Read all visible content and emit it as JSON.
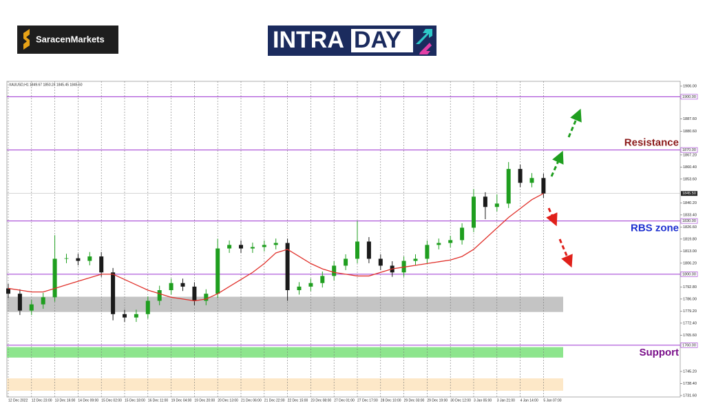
{
  "header": {
    "brand": "SaracenMarkets",
    "logo_left": "INTRA",
    "logo_right": "DAY"
  },
  "chart_data": {
    "type": "candlestick",
    "title": "XAUUSD,H1  1849.67 1850.24 1845.45 1845.50",
    "categories": [
      "12 Dec 2022",
      null,
      "12 Dec 23:00",
      null,
      "13 Dec 16:00",
      null,
      "14 Dec 09:00",
      null,
      "15 Dec 02:00",
      null,
      "15 Dec 18:00",
      null,
      "16 Dec 11:00",
      null,
      "19 Dec 04:00",
      null,
      "19 Dec 20:00",
      null,
      "20 Dec 13:00",
      null,
      "21 Dec 06:00",
      null,
      "21 Dec 22:00",
      null,
      "22 Dec 15:00",
      null,
      "23 Dec 08:00",
      null,
      "27 Dec 01:00",
      null,
      "27 Dec 17:00",
      null,
      "28 Dec 10:00",
      null,
      "29 Dec 03:00",
      null,
      "29 Dec 19:00",
      null,
      "30 Dec 12:00",
      null,
      "3 Jan 05:00",
      null,
      "3 Jan 21:00",
      null,
      "4 Jan 14:00",
      null,
      "5 Jan 07:00"
    ],
    "open": [
      1792,
      1789,
      1779.5,
      1783,
      1787,
      1808.7,
      1809,
      1807.5,
      1810,
      1801,
      1777.5,
      1775.6,
      1777.5,
      1785,
      1791,
      1795,
      1793,
      1785,
      1789,
      1814.5,
      1816.5,
      1814.5,
      1815.3,
      1816.5,
      1817.6,
      1791,
      1793,
      1795,
      1799,
      1804.8,
      1808.7,
      1818.4,
      1808.7,
      1804.8,
      1801,
      1807.5,
      1808.7,
      1816.5,
      1817.6,
      1819.2,
      1826.2,
      1843.7,
      1837.9,
      1839.8,
      1859.3,
      1851.5,
      1854.2
    ],
    "high": [
      1794.5,
      1791.5,
      1785.5,
      1789.5,
      1822,
      1811.5,
      1811.5,
      1812.5,
      1812.5,
      1803.5,
      1780,
      1780,
      1787.5,
      1793.5,
      1797.5,
      1797.5,
      1795.5,
      1791.5,
      1820,
      1819,
      1819,
      1817.8,
      1819,
      1820.1,
      1820.1,
      1795.5,
      1797.5,
      1801.5,
      1807.3,
      1811.2,
      1830,
      1820.9,
      1811.2,
      1807.3,
      1810,
      1811.2,
      1819,
      1820.1,
      1821.7,
      1828.7,
      1848,
      1846.2,
      1845,
      1863.2,
      1861.8,
      1857,
      1856.7
    ],
    "low": [
      1786.5,
      1777,
      1777,
      1780.5,
      1784.5,
      1806.2,
      1805,
      1805,
      1798.5,
      1774,
      1773.1,
      1773.1,
      1775,
      1782.5,
      1788.5,
      1790.5,
      1782.5,
      1782.5,
      1786.5,
      1812,
      1812,
      1812,
      1812.8,
      1814,
      1785,
      1788.5,
      1790.5,
      1792.5,
      1796.5,
      1802.3,
      1806.2,
      1806.2,
      1802.3,
      1798.5,
      1798.5,
      1805,
      1806.2,
      1814,
      1815.1,
      1816.7,
      1823.7,
      1831,
      1835.4,
      1837.3,
      1849,
      1849,
      1843
    ],
    "close": [
      1789,
      1779.5,
      1783,
      1787,
      1808.7,
      1809,
      1807.5,
      1810,
      1801,
      1777.5,
      1775.6,
      1777.5,
      1785,
      1791,
      1795,
      1793,
      1785,
      1789,
      1814.5,
      1816.5,
      1814.5,
      1815.3,
      1816.5,
      1817.6,
      1791,
      1793,
      1795,
      1799,
      1804.8,
      1808.7,
      1818.4,
      1808.7,
      1804.8,
      1801,
      1807.5,
      1808.7,
      1816.5,
      1817.6,
      1819.2,
      1826.2,
      1843.7,
      1837.9,
      1839.8,
      1859.3,
      1851.5,
      1854.2,
      1845.5
    ],
    "up_color": "#1f9e1f",
    "down_color": "#1a1a1a",
    "ma_values": [
      1792,
      1791,
      1790,
      1790,
      1792,
      1794,
      1796,
      1798,
      1800,
      1800,
      1797,
      1794,
      1791,
      1789,
      1787,
      1786,
      1785,
      1786,
      1789,
      1793,
      1797,
      1801,
      1806,
      1812,
      1814,
      1810,
      1806,
      1803,
      1801,
      1800,
      1799,
      1799,
      1801,
      1803,
      1804,
      1805,
      1806,
      1807,
      1808,
      1810,
      1814,
      1820,
      1826,
      1832,
      1837,
      1842,
      1845.5
    ],
    "ma_color": "#e0302a",
    "ylim": [
      1730.8,
      1908.7
    ],
    "yticks": [
      {
        "value": 1731.6,
        "label": "1731.60"
      },
      {
        "value": 1738.4,
        "label": "1738.40"
      },
      {
        "value": 1745.2,
        "label": "1745.20"
      },
      {
        "value": 1765.6,
        "label": "1765.60"
      },
      {
        "value": 1772.4,
        "label": "1772.40"
      },
      {
        "value": 1779.2,
        "label": "1779.20"
      },
      {
        "value": 1786,
        "label": "1786.00"
      },
      {
        "value": 1792.8,
        "label": "1792.80"
      },
      {
        "value": 1806.2,
        "label": "1806.20"
      },
      {
        "value": 1813,
        "label": "1813.00"
      },
      {
        "value": 1819.8,
        "label": "1819.80"
      },
      {
        "value": 1826.6,
        "label": "1826.60"
      },
      {
        "value": 1833.4,
        "label": "1833.40"
      },
      {
        "value": 1840.2,
        "label": "1840.20"
      },
      {
        "value": 1853.6,
        "label": "1853.60"
      },
      {
        "value": 1860.4,
        "label": "1860.40"
      },
      {
        "value": 1867.2,
        "label": "1867.20"
      },
      {
        "value": 1880.6,
        "label": "1880.60"
      },
      {
        "value": 1887.6,
        "label": "1887.60"
      },
      {
        "value": 1906,
        "label": "1906.00"
      }
    ],
    "levels": [
      {
        "value": 1900,
        "label": "1900.00"
      },
      {
        "value": 1870,
        "label": "1870.00",
        "annotation": "Resistance",
        "annotation_color": "#8b1a1a",
        "annotation_position": "above"
      },
      {
        "value": 1830,
        "label": "1830.00",
        "annotation": "RBS zone",
        "annotation_color": "#1c2fd0",
        "annotation_position": "below"
      },
      {
        "value": 1800,
        "label": "1800.00"
      },
      {
        "value": 1760,
        "label": "1760.00",
        "annotation": "Support",
        "annotation_color": "#7a0f8a",
        "annotation_position": "below"
      }
    ],
    "level_color": "#9b30d0",
    "zones": [
      {
        "from": 1778.7,
        "to": 1787.3,
        "color": "#c4c4c4"
      },
      {
        "from": 1753,
        "to": 1758.9,
        "color": "#8de58d"
      },
      {
        "from": 1734.3,
        "to": 1741.3,
        "color": "#fde8c8"
      }
    ],
    "last": {
      "value": 1845.5,
      "label": "1845.50"
    },
    "grid": true
  }
}
